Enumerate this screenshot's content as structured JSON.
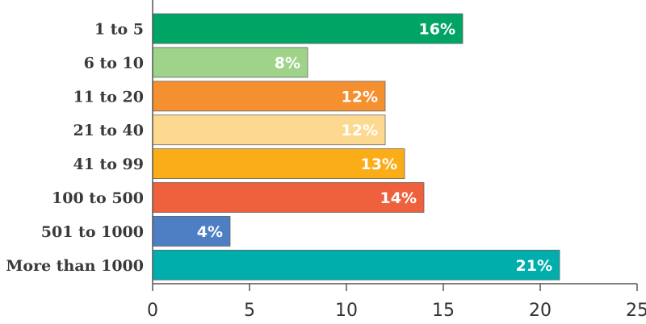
{
  "chart_data": {
    "type": "bar",
    "orientation": "horizontal",
    "categories": [
      "1 to 5",
      "6 to 10",
      "11 to 20",
      "21 to 40",
      "41 to 99",
      "100 to 500",
      "501 to 1000",
      "More than 1000"
    ],
    "values": [
      16,
      8,
      12,
      12,
      13,
      14,
      4,
      21
    ],
    "value_labels": [
      "16%",
      "8%",
      "12%",
      "12%",
      "13%",
      "14%",
      "4%",
      "21%"
    ],
    "colors": [
      "#00a464",
      "#9fd38a",
      "#f4902f",
      "#fdd98f",
      "#fbad18",
      "#ef613d",
      "#4e7ec3",
      "#00aeac"
    ],
    "xlim": [
      0,
      25
    ],
    "xticks": [
      "0",
      "5",
      "10",
      "15",
      "20",
      "25"
    ],
    "grid": false,
    "title": "",
    "xlabel": "",
    "ylabel": ""
  }
}
